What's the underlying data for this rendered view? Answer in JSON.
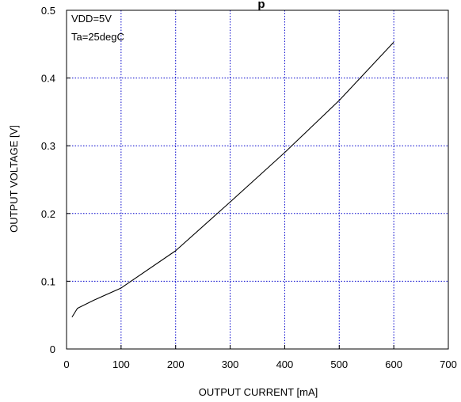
{
  "chart_data": {
    "type": "line",
    "title": "p",
    "xlabel": "OUTPUT CURRENT [mA]",
    "ylabel": "OUTPUT  VOLTAGE [V]",
    "xlim": [
      0,
      700
    ],
    "ylim": [
      0,
      0.5
    ],
    "x_ticks": [
      0,
      100,
      200,
      300,
      400,
      500,
      600,
      700
    ],
    "y_ticks": [
      0,
      0.1,
      0.2,
      0.3,
      0.4,
      0.5
    ],
    "x_tick_labels": [
      "0",
      "100",
      "200",
      "300",
      "400",
      "500",
      "600",
      "700"
    ],
    "y_tick_labels": [
      "0",
      "0.1",
      "0.2",
      "0.3",
      "0.4",
      "0.5"
    ],
    "grid": true,
    "colors": {
      "grid": "#0000cc",
      "line": "#000000",
      "frame": "#000000"
    },
    "annotations": [
      "VDD=5V",
      "Ta=25degC"
    ],
    "series": [
      {
        "x": [
          10,
          20,
          50,
          100,
          200,
          300,
          400,
          500,
          600
        ],
        "y": [
          0.047,
          0.06,
          0.072,
          0.09,
          0.145,
          0.217,
          0.29,
          0.367,
          0.453
        ]
      }
    ]
  }
}
